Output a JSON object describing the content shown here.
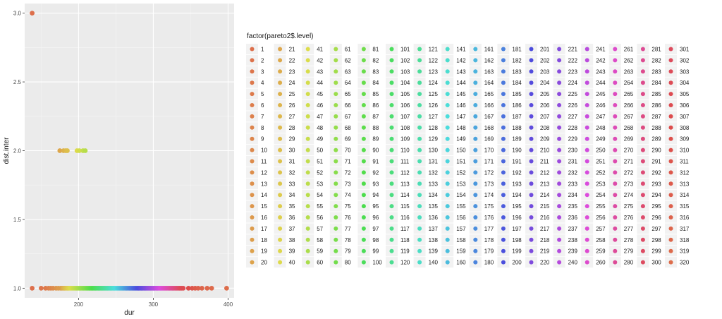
{
  "chart_data": {
    "type": "scatter",
    "title": "",
    "xlabel": "dur",
    "ylabel": "dist.inter",
    "xlim": [
      128,
      408
    ],
    "ylim": [
      0.93,
      3.07
    ],
    "x_ticks": [
      100,
      200,
      300,
      400
    ],
    "x_tick_labels": [
      "100",
      "200",
      "300",
      "400"
    ],
    "y_ticks": [
      1.0,
      1.5,
      2.0,
      2.5,
      3.0
    ],
    "y_tick_labels": [
      "1.0",
      "1.5",
      "2.0",
      "2.5",
      "3.0"
    ],
    "grid": true,
    "legend": {
      "title": "factor(pareto2$.level)",
      "placement": "right",
      "levels_from": 1,
      "levels_to": 320,
      "rows_per_column": 20
    },
    "points": [
      {
        "x": 138,
        "y": 3.0,
        "level": 1
      },
      {
        "x": 138,
        "y": 1.0,
        "level": 1
      },
      {
        "x": 175,
        "y": 2.0,
        "level": 21
      },
      {
        "x": 180,
        "y": 2.0,
        "level": 25
      },
      {
        "x": 183,
        "y": 2.0,
        "level": 28
      },
      {
        "x": 185,
        "y": 2.0,
        "level": 30
      },
      {
        "x": 198,
        "y": 2.0,
        "level": 40
      },
      {
        "x": 201,
        "y": 2.0,
        "level": 45
      },
      {
        "x": 206,
        "y": 2.0,
        "level": 50
      },
      {
        "x": 209,
        "y": 2.0,
        "level": 55
      },
      {
        "x": 150,
        "y": 1.0,
        "level": 3
      },
      {
        "x": 156,
        "y": 1.0,
        "level": 5
      },
      {
        "x": 160,
        "y": 1.0,
        "level": 7
      },
      {
        "x": 163,
        "y": 1.0,
        "level": 9
      },
      {
        "x": 166,
        "y": 1.0,
        "level": 11
      },
      {
        "x": 170,
        "y": 1.0,
        "level": 14
      },
      {
        "x": 173,
        "y": 1.0,
        "level": 17
      },
      {
        "x": 340,
        "y": 1.0,
        "level": 305
      },
      {
        "x": 347,
        "y": 1.0,
        "level": 308
      },
      {
        "x": 352,
        "y": 1.0,
        "level": 311
      },
      {
        "x": 356,
        "y": 1.0,
        "level": 313
      },
      {
        "x": 360,
        "y": 1.0,
        "level": 315
      },
      {
        "x": 365,
        "y": 1.0,
        "level": 317
      },
      {
        "x": 372,
        "y": 1.0,
        "level": 318
      },
      {
        "x": 378,
        "y": 1.0,
        "level": 319
      },
      {
        "x": 398,
        "y": 1.0,
        "level": 320
      }
    ],
    "dense_run": {
      "y": 1.0,
      "x_from": 176,
      "x_to": 338,
      "level_from": 18,
      "level_to": 304
    }
  }
}
